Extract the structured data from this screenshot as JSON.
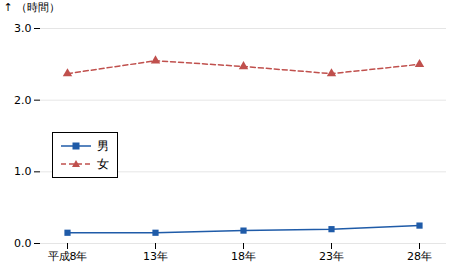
{
  "chart_data": {
    "type": "line",
    "categories": [
      "平成8年",
      "13年",
      "18年",
      "23年",
      "28年"
    ],
    "series": [
      {
        "name": "男",
        "color": "#1f5ba8",
        "values": [
          0.15,
          0.15,
          0.18,
          0.2,
          0.25
        ],
        "marker": "square",
        "line_style": "solid"
      },
      {
        "name": "女",
        "color": "#c0504d",
        "values": [
          2.37,
          2.55,
          2.47,
          2.37,
          2.5
        ],
        "marker": "triangle",
        "line_style": "dashed"
      }
    ],
    "ylabel": "（時間）",
    "ylim": [
      0,
      3
    ],
    "yticks": [
      0,
      1,
      2,
      3
    ],
    "grid": true,
    "legend": "lower left"
  }
}
